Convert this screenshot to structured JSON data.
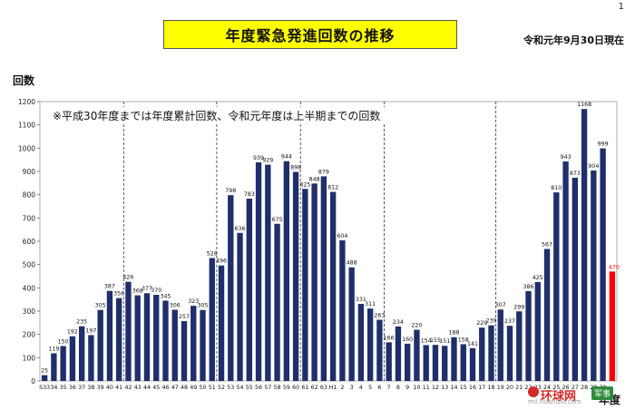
{
  "page_number": "1",
  "as_of": "令和元年9月30日現在",
  "watermark": {
    "main": "环球网",
    "sub": "mil.huanqiu.com",
    "badge": "军事"
  },
  "chart_data": {
    "type": "bar",
    "title": "年度緊急発進回数の推移",
    "annotation": "※平成30年度までは年度累計回数、令和元年度は上半期までの回数",
    "ylabel": "回数",
    "xlabel": "年度",
    "ylim": [
      0,
      1200
    ],
    "yticks": [
      0,
      100,
      200,
      300,
      400,
      500,
      600,
      700,
      800,
      900,
      1000,
      1100,
      1200
    ],
    "grid": false,
    "bar_color": "#1f2f6b",
    "highlight_color": "#ff0000",
    "era_dividers_after": [
      "41",
      "51",
      "60",
      "6",
      "18"
    ],
    "categories": [
      "S33",
      "34",
      "35",
      "36",
      "37",
      "38",
      "39",
      "40",
      "41",
      "42",
      "43",
      "44",
      "45",
      "46",
      "47",
      "48",
      "49",
      "50",
      "51",
      "52",
      "53",
      "54",
      "55",
      "56",
      "57",
      "58",
      "59",
      "60",
      "61",
      "62",
      "63",
      "H1",
      "2",
      "3",
      "4",
      "5",
      "6",
      "7",
      "8",
      "9",
      "10",
      "11",
      "12",
      "13",
      "14",
      "15",
      "16",
      "17",
      "18",
      "19",
      "20",
      "21",
      "22",
      "23",
      "24",
      "25",
      "26",
      "27",
      "28",
      "29",
      "30",
      "R1"
    ],
    "tick_labels": [
      "S33",
      "34",
      "35",
      "36",
      "37",
      "38",
      "39",
      "40",
      "41",
      "42",
      "43",
      "44",
      "45",
      "46",
      "47",
      "48",
      "49",
      "50",
      "51",
      "52",
      "53",
      "54",
      "55",
      "56",
      "57",
      "58",
      "59",
      "60",
      "61",
      "62",
      "63",
      "H1",
      "2",
      "3",
      "4",
      "5",
      "6",
      "7",
      "8",
      "9",
      "10",
      "11",
      "12",
      "13",
      "14",
      "15",
      "16",
      "17",
      "18",
      "19",
      "20",
      "21",
      "22",
      "23",
      "24",
      "25",
      "26",
      "27",
      "28",
      "29",
      "30",
      ""
    ],
    "values": [
      25,
      119,
      150,
      192,
      235,
      197,
      305,
      387,
      356,
      426,
      368,
      377,
      370,
      345,
      306,
      257,
      323,
      305,
      528,
      496,
      798,
      636,
      783,
      939,
      929,
      675,
      944,
      898,
      825,
      848,
      879,
      812,
      604,
      488,
      331,
      311,
      263,
      166,
      234,
      160,
      220,
      154,
      155,
      151,
      188,
      158,
      141,
      229,
      239,
      307,
      237,
      299,
      386,
      425,
      567,
      810,
      943,
      873,
      1168,
      904,
      999,
      470
    ],
    "highlight_index": 61
  }
}
